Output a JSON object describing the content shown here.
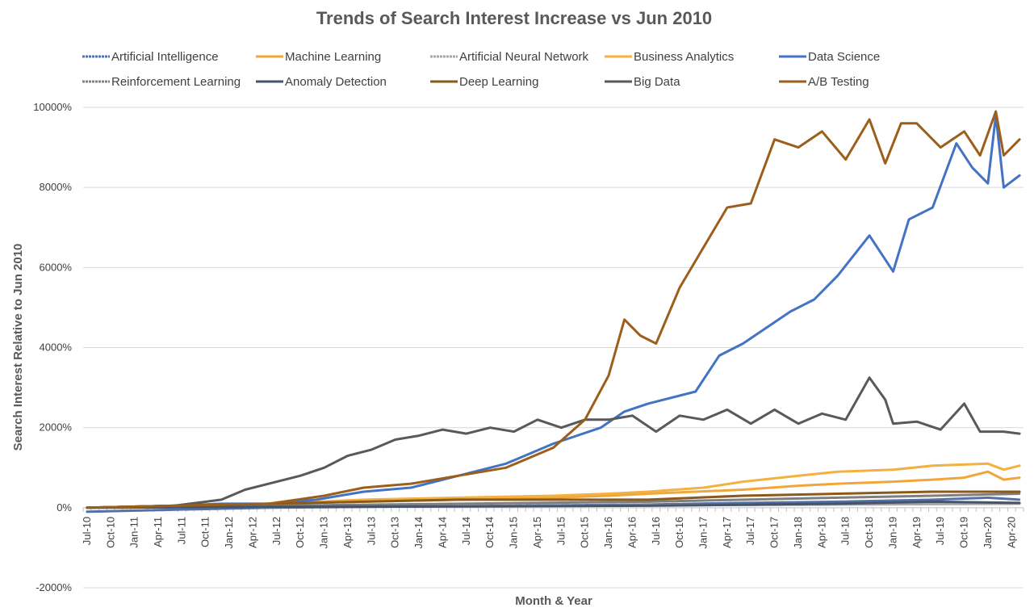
{
  "chart_data": {
    "type": "line",
    "title": "Trends of Search Interest Increase vs Jun 2010",
    "xlabel": "Month & Year",
    "ylabel": "Search Interest Relative to Jun 2010",
    "ylim": [
      -2000,
      10000
    ],
    "y_unit": "%",
    "yticks": [
      -2000,
      0,
      2000,
      4000,
      6000,
      8000,
      10000
    ],
    "x_start": "2010-07",
    "x_end": "2020-05",
    "xtick_labels": [
      "Jul-10",
      "Oct-10",
      "Jan-11",
      "Apr-11",
      "Jul-11",
      "Oct-11",
      "Jan-12",
      "Apr-12",
      "Jul-12",
      "Oct-12",
      "Jan-13",
      "Apr-13",
      "Jul-13",
      "Oct-13",
      "Jan-14",
      "Apr-14",
      "Jul-14",
      "Oct-14",
      "Jan-15",
      "Apr-15",
      "Jul-15",
      "Oct-15",
      "Jan-16",
      "Apr-16",
      "Jul-16",
      "Oct-16",
      "Jan-17",
      "Apr-17",
      "Jul-17",
      "Oct-17",
      "Jan-18",
      "Apr-18",
      "Jul-18",
      "Oct-18",
      "Jan-19",
      "Apr-19",
      "Jul-19",
      "Oct-19",
      "Jan-20",
      "Apr-20"
    ],
    "grid": true,
    "legend_position": "top",
    "series": [
      {
        "name": "Artificial Intelligence",
        "color": "#5470a6",
        "style": "textured",
        "points": [
          [
            "2010-07",
            -100
          ],
          [
            "2011-06",
            -50
          ],
          [
            "2012-06",
            0
          ],
          [
            "2013-06",
            20
          ],
          [
            "2014-06",
            40
          ],
          [
            "2015-06",
            60
          ],
          [
            "2016-06",
            80
          ],
          [
            "2017-06",
            120
          ],
          [
            "2018-06",
            150
          ],
          [
            "2019-06",
            200
          ],
          [
            "2020-01",
            250
          ],
          [
            "2020-05",
            200
          ]
        ]
      },
      {
        "name": "Machine Learning",
        "color": "#f1a63a",
        "style": "solid",
        "points": [
          [
            "2010-07",
            0
          ],
          [
            "2011-06",
            50
          ],
          [
            "2012-06",
            100
          ],
          [
            "2013-06",
            150
          ],
          [
            "2014-06",
            200
          ],
          [
            "2015-06",
            250
          ],
          [
            "2016-01",
            300
          ],
          [
            "2016-06",
            350
          ],
          [
            "2017-06",
            450
          ],
          [
            "2018-01",
            550
          ],
          [
            "2018-06",
            600
          ],
          [
            "2019-01",
            650
          ],
          [
            "2019-06",
            700
          ],
          [
            "2019-10",
            750
          ],
          [
            "2020-01",
            900
          ],
          [
            "2020-03",
            700
          ],
          [
            "2020-05",
            750
          ]
        ]
      },
      {
        "name": "Artificial Neural Network",
        "color": "#a6a6a6",
        "style": "textured",
        "points": [
          [
            "2010-07",
            0
          ],
          [
            "2012-06",
            20
          ],
          [
            "2014-06",
            40
          ],
          [
            "2016-06",
            60
          ],
          [
            "2018-06",
            80
          ],
          [
            "2020-05",
            100
          ]
        ]
      },
      {
        "name": "Business Analytics",
        "color": "#f2b141",
        "style": "solid",
        "points": [
          [
            "2010-07",
            0
          ],
          [
            "2011-06",
            50
          ],
          [
            "2012-06",
            100
          ],
          [
            "2013-06",
            200
          ],
          [
            "2014-06",
            250
          ],
          [
            "2015-06",
            300
          ],
          [
            "2016-01",
            350
          ],
          [
            "2016-06",
            400
          ],
          [
            "2017-01",
            500
          ],
          [
            "2017-06",
            650
          ],
          [
            "2018-01",
            800
          ],
          [
            "2018-06",
            900
          ],
          [
            "2019-01",
            950
          ],
          [
            "2019-06",
            1050
          ],
          [
            "2020-01",
            1100
          ],
          [
            "2020-03",
            950
          ],
          [
            "2020-05",
            1050
          ]
        ]
      },
      {
        "name": "Data Science",
        "color": "#4472c4",
        "style": "solid",
        "points": [
          [
            "2010-07",
            0
          ],
          [
            "2011-06",
            50
          ],
          [
            "2011-12",
            100
          ],
          [
            "2012-06",
            100
          ],
          [
            "2012-12",
            200
          ],
          [
            "2013-06",
            400
          ],
          [
            "2013-12",
            500
          ],
          [
            "2014-06",
            800
          ],
          [
            "2014-12",
            1100
          ],
          [
            "2015-06",
            1600
          ],
          [
            "2015-12",
            2000
          ],
          [
            "2016-03",
            2400
          ],
          [
            "2016-06",
            2600
          ],
          [
            "2016-12",
            2900
          ],
          [
            "2017-03",
            3800
          ],
          [
            "2017-06",
            4100
          ],
          [
            "2017-12",
            4900
          ],
          [
            "2018-03",
            5200
          ],
          [
            "2018-06",
            5800
          ],
          [
            "2018-10",
            6800
          ],
          [
            "2019-01",
            5900
          ],
          [
            "2019-03",
            7200
          ],
          [
            "2019-06",
            7500
          ],
          [
            "2019-09",
            9100
          ],
          [
            "2019-11",
            8500
          ],
          [
            "2020-01",
            8100
          ],
          [
            "2020-02",
            9800
          ],
          [
            "2020-03",
            8000
          ],
          [
            "2020-05",
            8300
          ]
        ]
      },
      {
        "name": "Reinforcement Learning",
        "color": "#7f7f7f",
        "style": "textured",
        "points": [
          [
            "2010-07",
            0
          ],
          [
            "2012-06",
            50
          ],
          [
            "2014-06",
            100
          ],
          [
            "2016-06",
            150
          ],
          [
            "2018-06",
            250
          ],
          [
            "2019-06",
            300
          ],
          [
            "2020-05",
            350
          ]
        ]
      },
      {
        "name": "Anomaly Detection",
        "color": "#44546a",
        "style": "solid",
        "points": [
          [
            "2010-07",
            0
          ],
          [
            "2012-06",
            20
          ],
          [
            "2014-06",
            30
          ],
          [
            "2016-06",
            50
          ],
          [
            "2018-06",
            100
          ],
          [
            "2019-06",
            150
          ],
          [
            "2020-05",
            120
          ]
        ]
      },
      {
        "name": "Deep Learning",
        "color": "#8b5a1a",
        "style": "solid",
        "points": [
          [
            "2010-07",
            0
          ],
          [
            "2011-06",
            50
          ],
          [
            "2012-06",
            100
          ],
          [
            "2013-06",
            150
          ],
          [
            "2014-06",
            200
          ],
          [
            "2015-06",
            200
          ],
          [
            "2016-06",
            200
          ],
          [
            "2017-06",
            300
          ],
          [
            "2018-06",
            350
          ],
          [
            "2019-06",
            400
          ],
          [
            "2020-05",
            400
          ]
        ]
      },
      {
        "name": "Big Data",
        "color": "#595959",
        "style": "solid",
        "points": [
          [
            "2010-07",
            0
          ],
          [
            "2011-06",
            50
          ],
          [
            "2011-12",
            200
          ],
          [
            "2012-03",
            450
          ],
          [
            "2012-06",
            600
          ],
          [
            "2012-10",
            800
          ],
          [
            "2013-01",
            1000
          ],
          [
            "2013-04",
            1300
          ],
          [
            "2013-07",
            1450
          ],
          [
            "2013-10",
            1700
          ],
          [
            "2014-01",
            1800
          ],
          [
            "2014-04",
            1950
          ],
          [
            "2014-07",
            1850
          ],
          [
            "2014-10",
            2000
          ],
          [
            "2015-01",
            1900
          ],
          [
            "2015-04",
            2200
          ],
          [
            "2015-07",
            2000
          ],
          [
            "2015-10",
            2200
          ],
          [
            "2016-01",
            2200
          ],
          [
            "2016-04",
            2300
          ],
          [
            "2016-07",
            1900
          ],
          [
            "2016-10",
            2300
          ],
          [
            "2017-01",
            2200
          ],
          [
            "2017-04",
            2450
          ],
          [
            "2017-07",
            2100
          ],
          [
            "2017-10",
            2450
          ],
          [
            "2018-01",
            2100
          ],
          [
            "2018-04",
            2350
          ],
          [
            "2018-07",
            2200
          ],
          [
            "2018-10",
            3250
          ],
          [
            "2018-12",
            2700
          ],
          [
            "2019-01",
            2100
          ],
          [
            "2019-04",
            2150
          ],
          [
            "2019-07",
            1950
          ],
          [
            "2019-10",
            2600
          ],
          [
            "2019-12",
            1900
          ],
          [
            "2020-03",
            1900
          ],
          [
            "2020-05",
            1850
          ]
        ]
      },
      {
        "name": "A/B Testing",
        "color": "#9c5f1b",
        "style": "solid",
        "points": [
          [
            "2010-07",
            0
          ],
          [
            "2011-06",
            50
          ],
          [
            "2012-06",
            100
          ],
          [
            "2013-01",
            300
          ],
          [
            "2013-06",
            500
          ],
          [
            "2013-12",
            600
          ],
          [
            "2014-06",
            800
          ],
          [
            "2014-12",
            1000
          ],
          [
            "2015-06",
            1500
          ],
          [
            "2015-10",
            2200
          ],
          [
            "2016-01",
            3300
          ],
          [
            "2016-03",
            4700
          ],
          [
            "2016-05",
            4300
          ],
          [
            "2016-07",
            4100
          ],
          [
            "2016-10",
            5500
          ],
          [
            "2017-01",
            6500
          ],
          [
            "2017-04",
            7500
          ],
          [
            "2017-07",
            7600
          ],
          [
            "2017-10",
            9200
          ],
          [
            "2018-01",
            9000
          ],
          [
            "2018-04",
            9400
          ],
          [
            "2018-07",
            8700
          ],
          [
            "2018-10",
            9700
          ],
          [
            "2018-12",
            8600
          ],
          [
            "2019-02",
            9600
          ],
          [
            "2019-04",
            9600
          ],
          [
            "2019-07",
            9000
          ],
          [
            "2019-10",
            9400
          ],
          [
            "2019-12",
            8800
          ],
          [
            "2020-02",
            9900
          ],
          [
            "2020-03",
            8800
          ],
          [
            "2020-05",
            9200
          ]
        ]
      }
    ]
  }
}
